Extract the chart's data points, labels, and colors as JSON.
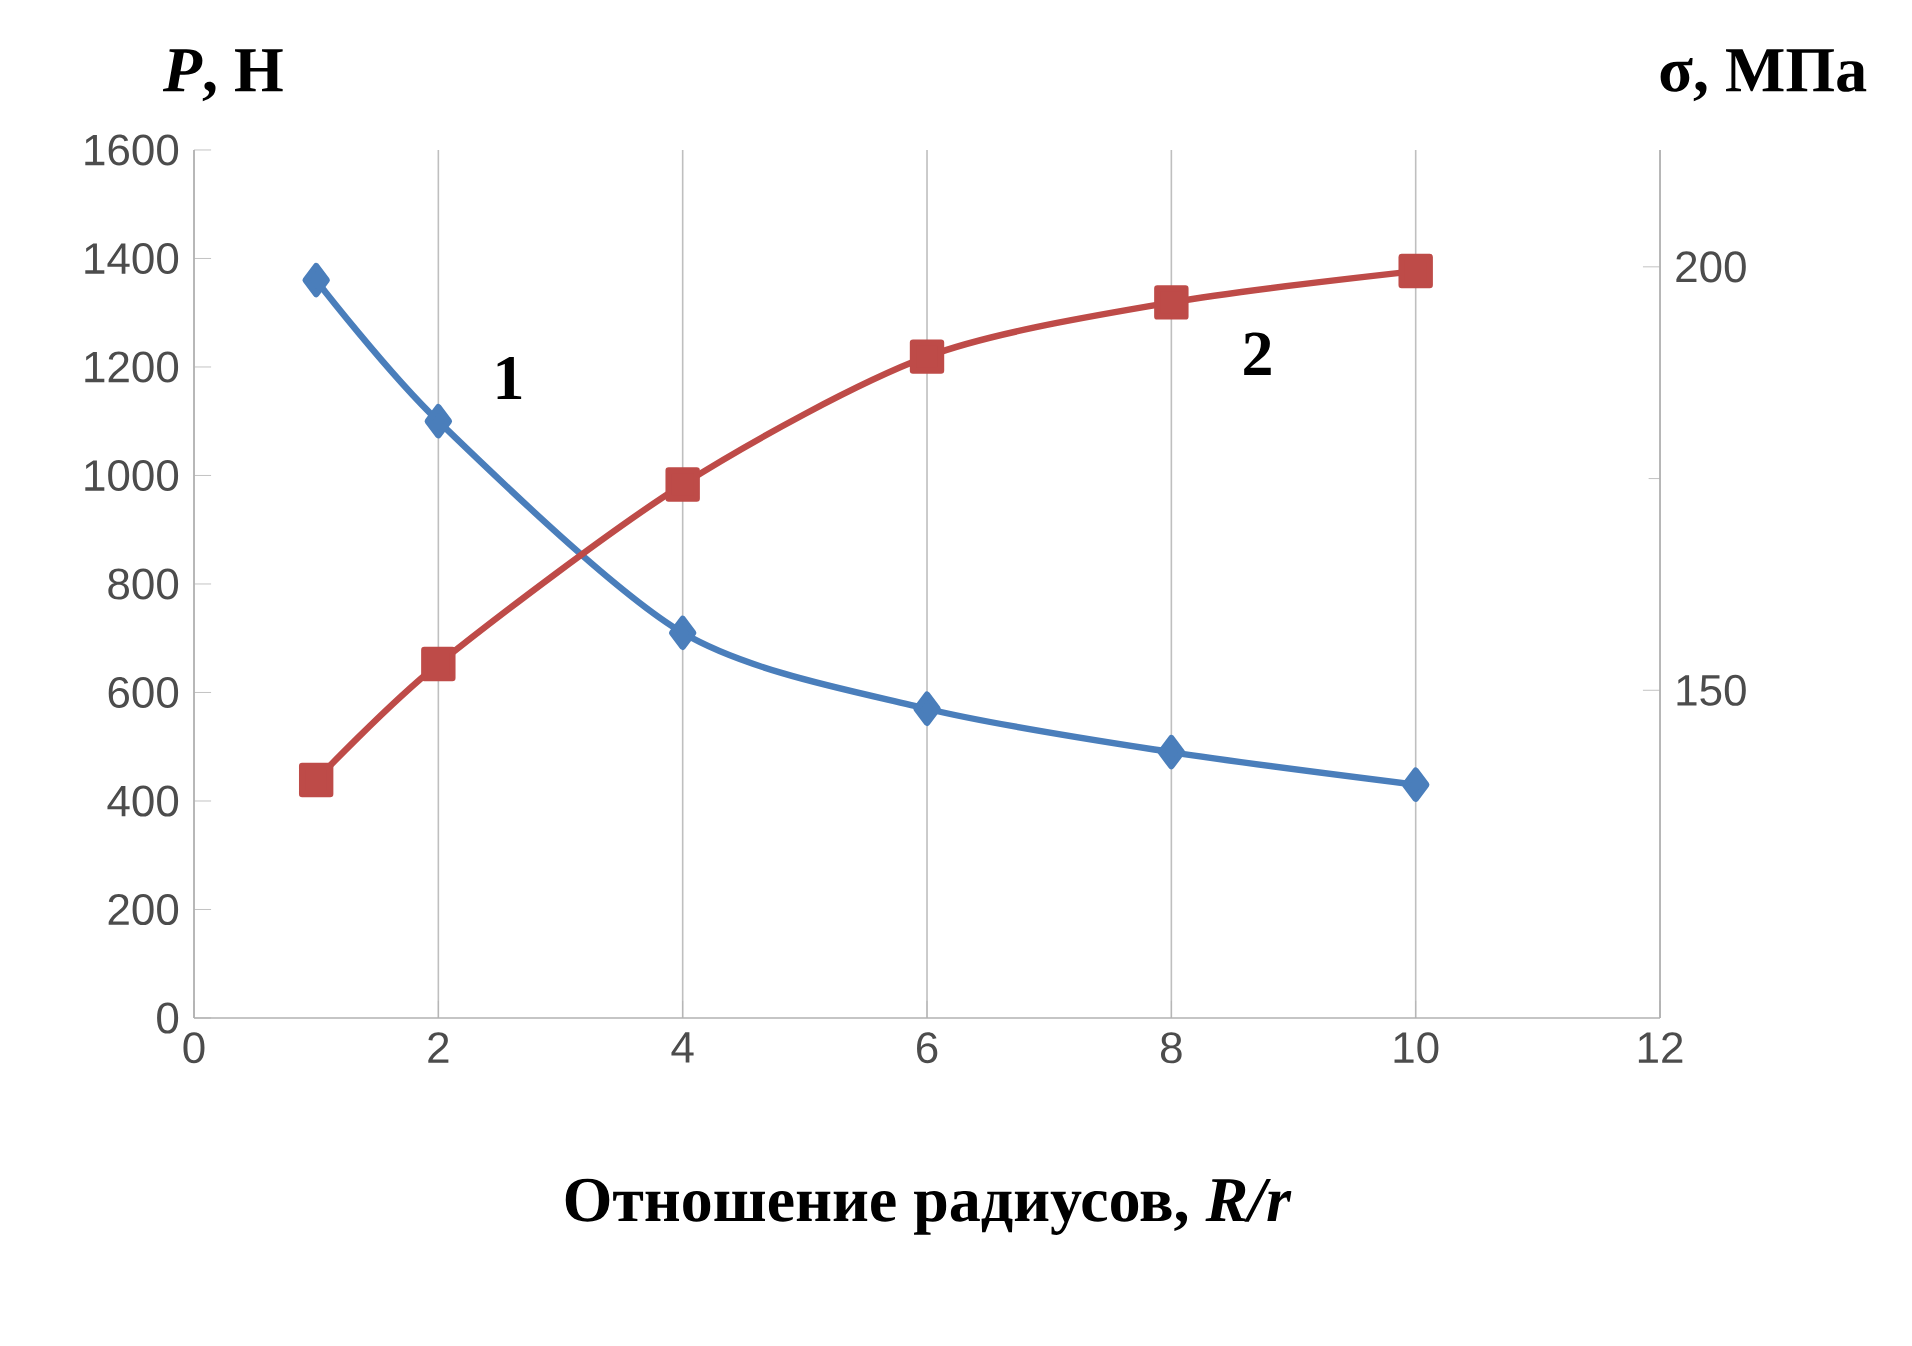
{
  "chart_data": {
    "type": "line",
    "xlabel": "Отношение радиусов, *R/r*",
    "ylabel": "*P*, Н",
    "y2label": "σ, МПа",
    "xlim": [
      0,
      12
    ],
    "xticks": [
      0,
      2,
      4,
      6,
      8,
      10,
      12
    ],
    "ylim": [
      0,
      1600
    ],
    "yticks": [
      0,
      200,
      400,
      600,
      800,
      1000,
      1200,
      1400,
      1600
    ],
    "y2lim": [
      111.3,
      213.8
    ],
    "y2ticks": [
      150,
      200
    ],
    "grid": "x",
    "series": [
      {
        "name": "1",
        "color": "#4a7ebb",
        "marker": "diamond",
        "x": [
          1,
          2,
          4,
          6,
          8,
          10
        ],
        "values": [
          1360,
          1100,
          710,
          570,
          490,
          430
        ]
      },
      {
        "name": "2",
        "color": "#be4b48",
        "marker": "square",
        "axis": "y2",
        "x": [
          1,
          2,
          4,
          6,
          8,
          10
        ],
        "values": [
          139.4,
          153.1,
          174.3,
          189.4,
          195.8,
          199.5
        ]
      }
    ]
  }
}
